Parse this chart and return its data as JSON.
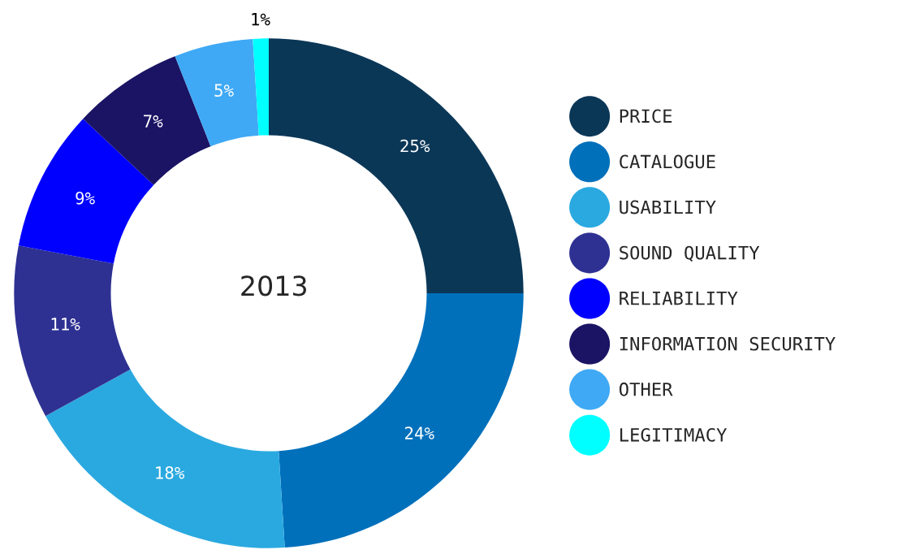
{
  "chart_data": {
    "type": "donut",
    "categories": [
      "PRICE",
      "CATALOGUE",
      "USABILITY",
      "SOUND QUALITY",
      "RELIABILITY",
      "INFORMATION SECURITY",
      "OTHER",
      "LEGITIMACY"
    ],
    "values": [
      25,
      24,
      18,
      11,
      9,
      7,
      5,
      1
    ],
    "colors": [
      "#0b3757",
      "#0070bb",
      "#2aa9e0",
      "#2e3192",
      "#0000ff",
      "#1b1464",
      "#3fa9f5",
      "#00ffff"
    ],
    "value_labels": [
      "25%",
      "24%",
      "18%",
      "11%",
      "9%",
      "7%",
      "5%",
      "1%"
    ],
    "annotations": [
      "2013"
    ],
    "legend": "right"
  }
}
